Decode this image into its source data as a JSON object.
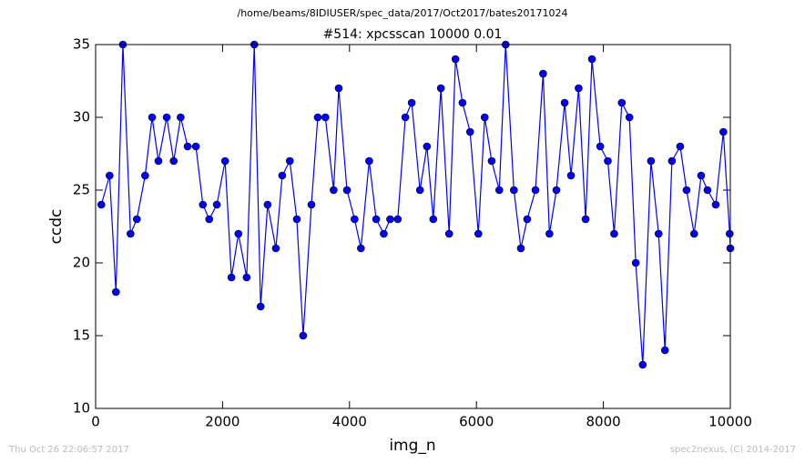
{
  "chart_data": {
    "type": "line",
    "suptitle": "/home/beams/8IDIUSER/spec_data/2017/Oct2017/bates20171024",
    "title": "#514: xpcsscan 10000 0.01",
    "xlabel": "img_n",
    "ylabel": "ccdc",
    "footer_left": "Thu Oct 26 22:06:57 2017",
    "footer_right": "spec2nexus, (C) 2014-2017",
    "x": [
      90,
      220,
      320,
      430,
      550,
      650,
      780,
      890,
      990,
      1120,
      1230,
      1340,
      1450,
      1580,
      1690,
      1790,
      1910,
      2040,
      2140,
      2250,
      2380,
      2500,
      2600,
      2710,
      2840,
      2940,
      3060,
      3170,
      3270,
      3400,
      3500,
      3620,
      3750,
      3830,
      3960,
      4080,
      4180,
      4310,
      4420,
      4540,
      4640,
      4760,
      4880,
      4980,
      5110,
      5220,
      5320,
      5440,
      5570,
      5670,
      5780,
      5900,
      6030,
      6130,
      6240,
      6360,
      6460,
      6590,
      6700,
      6800,
      6930,
      7050,
      7150,
      7260,
      7390,
      7490,
      7610,
      7720,
      7820,
      7950,
      8070,
      8170,
      8290,
      8410,
      8510,
      8620,
      8750,
      8870,
      8970,
      9080,
      9210,
      9310,
      9430,
      9540,
      9640,
      9770,
      9890,
      9990,
      10000
    ],
    "series": [
      {
        "color": "#0000ff",
        "values": [
          24,
          26,
          18,
          35,
          22,
          23,
          26,
          30,
          27,
          30,
          27,
          30,
          28,
          28,
          24,
          23,
          24,
          27,
          19,
          22,
          19,
          35,
          17,
          24,
          21,
          26,
          27,
          23,
          15,
          24,
          30,
          30,
          25,
          32,
          25,
          23,
          21,
          27,
          23,
          22,
          23,
          23,
          30,
          31,
          25,
          28,
          23,
          32,
          22,
          34,
          31,
          29,
          22,
          30,
          27,
          25,
          35,
          25,
          21,
          23,
          25,
          33,
          22,
          25,
          31,
          26,
          32,
          23,
          34,
          28,
          27,
          22,
          31,
          30,
          20,
          13,
          27,
          22,
          14,
          27,
          28,
          25,
          22,
          26,
          25,
          24,
          29,
          22,
          21
        ]
      }
    ],
    "xlim": [
      0,
      10000
    ],
    "xticks": [
      0,
      2000,
      4000,
      6000,
      8000,
      10000
    ],
    "ylim": [
      10,
      35
    ],
    "yticks": [
      10,
      15,
      20,
      25,
      30,
      35
    ]
  }
}
